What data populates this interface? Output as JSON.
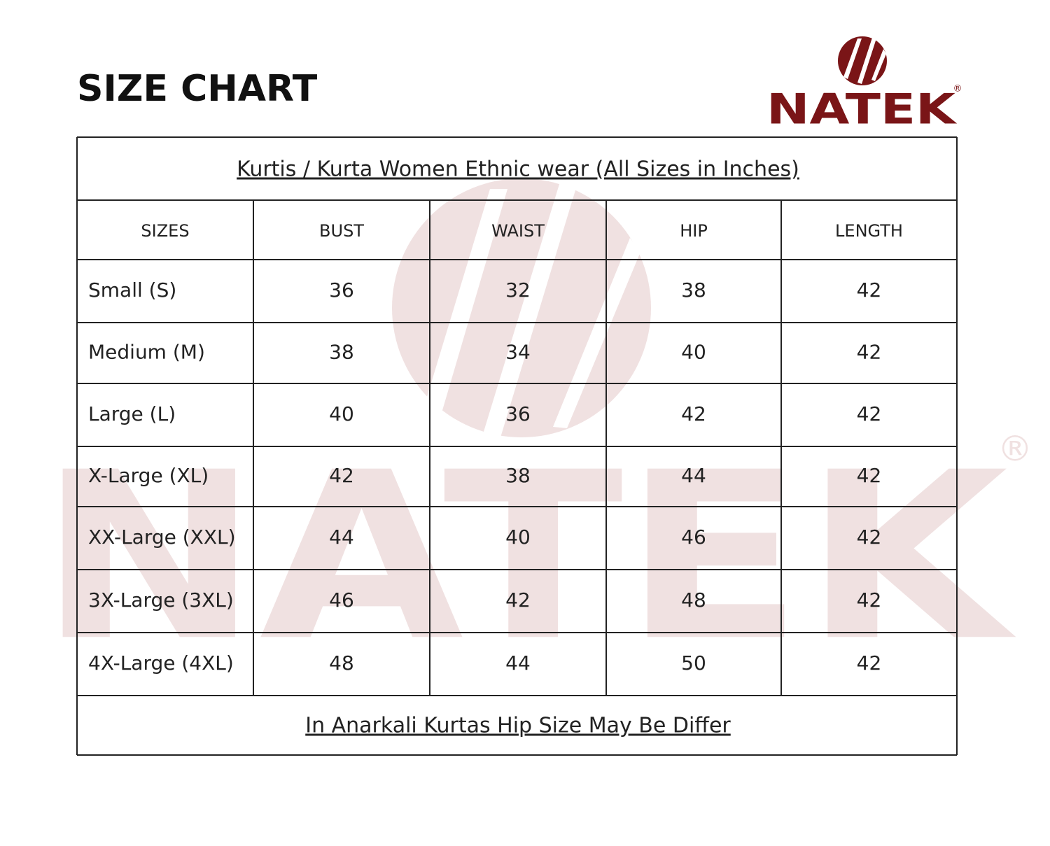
{
  "header": {
    "title": "SIZE CHART",
    "brand": "NATEK",
    "registered": "®"
  },
  "table": {
    "caption": "Kurtis / Kurta Women Ethnic wear (All Sizes in Inches)",
    "columns": [
      "SIZES",
      "BUST",
      "WAIST",
      "HIP",
      "LENGTH"
    ],
    "rows": [
      [
        "Small (S)",
        36,
        32,
        38,
        42
      ],
      [
        "Medium (M)",
        38,
        34,
        40,
        42
      ],
      [
        "Large (L)",
        40,
        36,
        42,
        42
      ],
      [
        "X-Large (XL)",
        42,
        38,
        44,
        42
      ],
      [
        "XX-Large (XXL)",
        44,
        40,
        46,
        42
      ],
      [
        "3X-Large (3XL)",
        46,
        42,
        48,
        42
      ],
      [
        "4X-Large (4XL)",
        48,
        44,
        50,
        42
      ]
    ],
    "footnote": "In Anarkali Kurtas Hip Size May Be Differ"
  }
}
